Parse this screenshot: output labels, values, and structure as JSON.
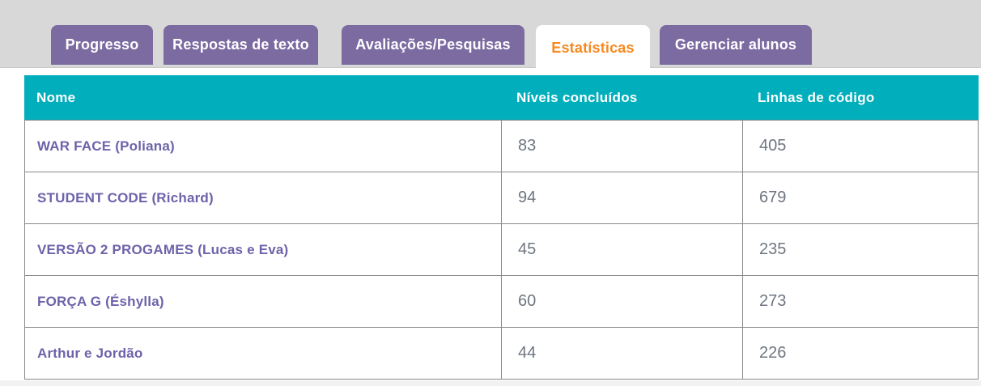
{
  "tabs": [
    {
      "label": "Progresso",
      "active": false
    },
    {
      "label": "Respostas de texto",
      "active": false
    },
    {
      "label": "Avaliações/Pesquisas",
      "active": false
    },
    {
      "label": "Estatísticas",
      "active": true
    },
    {
      "label": "Gerenciar alunos",
      "active": false
    }
  ],
  "table": {
    "columns": {
      "name": "Nome",
      "levels": "Níveis concluídos",
      "lines": "Linhas de código"
    },
    "rows": [
      {
        "name": "WAR FACE (Poliana)",
        "levels": "83",
        "lines": "405"
      },
      {
        "name": "STUDENT CODE (Richard)",
        "levels": "94",
        "lines": "679"
      },
      {
        "name": "VERSÃO 2 PROGAMES (Lucas e Eva)",
        "levels": "45",
        "lines": "235"
      },
      {
        "name": "FORÇA G (Éshylla)",
        "levels": "60",
        "lines": "273"
      },
      {
        "name": "Arthur e Jordão",
        "levels": "44",
        "lines": "226"
      }
    ]
  },
  "colors": {
    "tab_purple": "#7b6ba1",
    "active_tab_text_orange": "#f6891f",
    "table_header_teal": "#00aebc",
    "student_name_purple": "#6c63a9",
    "value_gray": "#6f7680",
    "border_gray": "#87898c",
    "top_band_gray": "#d8d8d8"
  }
}
